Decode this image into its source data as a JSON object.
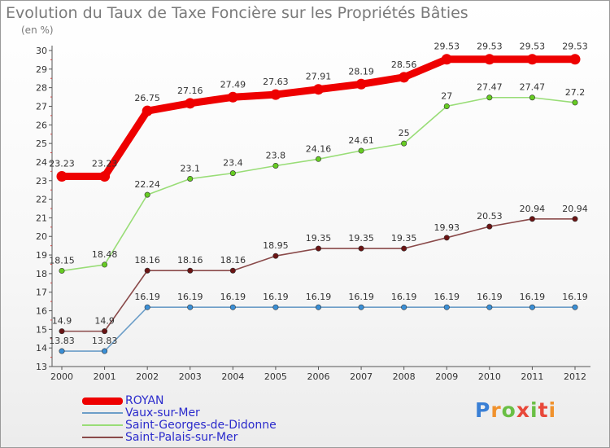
{
  "chart_data": {
    "type": "line",
    "title": "Evolution du Taux de Taxe Foncière sur les Propriétés Bâties",
    "unit_label": "(en %)",
    "categories": [
      "2000",
      "2001",
      "2002",
      "2003",
      "2004",
      "2005",
      "2006",
      "2007",
      "2008",
      "2009",
      "2010",
      "2011",
      "2012"
    ],
    "ylim": [
      13,
      30
    ],
    "yticks": [
      13,
      14,
      15,
      16,
      17,
      18,
      19,
      20,
      21,
      22,
      23,
      24,
      25,
      26,
      27,
      28,
      29,
      30
    ],
    "grid": false,
    "legend_position": "bottom-left",
    "series": [
      {
        "name": "ROYAN",
        "color": "#ee0000",
        "values": [
          23.23,
          23.23,
          26.75,
          27.16,
          27.49,
          27.63,
          27.91,
          28.19,
          28.56,
          29.53,
          29.53,
          29.53,
          29.53
        ],
        "labels": [
          "23.23",
          "23.23",
          "26.75",
          "27.16",
          "27.49",
          "27.63",
          "27.91",
          "28.19",
          "28.56",
          "29.53",
          "29.53",
          "29.53",
          "29.53"
        ]
      },
      {
        "name": "Vaux-sur-Mer",
        "color": "#6c9ec8",
        "point_color": "#3a8fd6",
        "values": [
          13.83,
          13.83,
          16.19,
          16.19,
          16.19,
          16.19,
          16.19,
          16.19,
          16.19,
          16.19,
          16.19,
          16.19,
          16.19
        ],
        "labels": [
          "13.83",
          "13.83",
          "16.19",
          "16.19",
          "16.19",
          "16.19",
          "16.19",
          "16.19",
          "16.19",
          "16.19",
          "16.19",
          "16.19",
          "16.19"
        ]
      },
      {
        "name": "Saint-Georges-de-Didonne",
        "color": "#99dd77",
        "point_color": "#66cc22",
        "values": [
          18.15,
          18.48,
          22.24,
          23.1,
          23.4,
          23.8,
          24.16,
          24.61,
          25,
          27,
          27.47,
          27.47,
          27.2
        ],
        "labels": [
          "18.15",
          "18.48",
          "22.24",
          "23.1",
          "23.4",
          "23.8",
          "24.16",
          "24.61",
          "25",
          "27",
          "27.47",
          "27.47",
          "27.2"
        ]
      },
      {
        "name": "Saint-Palais-sur-Mer",
        "color": "#8a4a4a",
        "point_color": "#6b1414",
        "values": [
          14.9,
          14.9,
          18.16,
          18.16,
          18.16,
          18.95,
          19.35,
          19.35,
          19.35,
          19.93,
          20.53,
          20.94,
          20.94
        ],
        "labels": [
          "14.9",
          "14.9",
          "18.16",
          "18.16",
          "18.16",
          "18.95",
          "19.35",
          "19.35",
          "19.35",
          "19.93",
          "20.53",
          "20.94",
          "20.94"
        ]
      }
    ]
  },
  "brand": {
    "name": "Proxiti",
    "colors": [
      "#3a7fd5",
      "#f0922d",
      "#6abf45",
      "#e8483a"
    ]
  }
}
